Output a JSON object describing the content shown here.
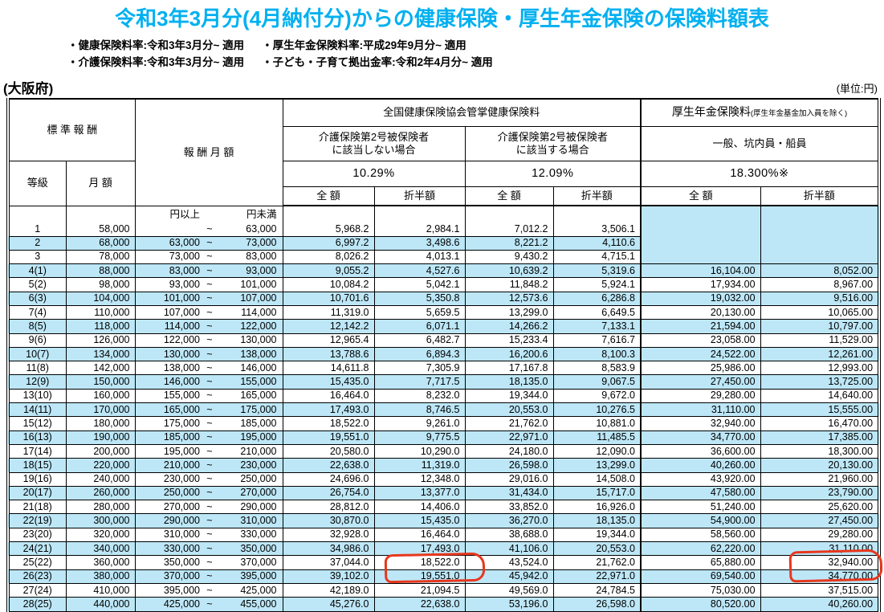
{
  "page": {
    "title": "令和3年3月分(4月納付分)からの健康保険・厚生年金保険の保険料額表",
    "notes_left": [
      "・健康保険料率:令和3年3月分~ 適用",
      "・介護保険料率:令和3年3月分~ 適用"
    ],
    "notes_right": [
      "・厚生年金保険料率:平成29年9月分~ 適用",
      "・子ども・子育て拠出金率:令和2年4月分~ 適用"
    ],
    "prefecture": "(大阪府)",
    "unit": "(単位:円)",
    "colors": {
      "title_accent": "#00b0f0",
      "row_highlight": "#bde7f7",
      "annotation_red": "#e8371d"
    }
  },
  "table": {
    "headers": {
      "standard_reward": "標 準 報 酬",
      "grade": "等級",
      "monthly_amount": "月 額",
      "monthly_reward": "報 酬 月 額",
      "health_group": "全国健康保険協会管掌健康保険料",
      "nocare_case": "介護保険第2号被保険者\nに該当しない場合",
      "care_case": "介護保険第2号被保険者\nに該当する場合",
      "nocare_rate": "10.29%",
      "care_rate": "12.09%",
      "pension_group": "厚生年金保険料",
      "pension_group_note": "(厚生年金基金加入員を除く)",
      "pension_type": "一般、坑内員・船員",
      "pension_rate": "18.300%※",
      "full_amount": "全 額",
      "half_amount": "折半額",
      "yen_or_more": "円以上",
      "yen_less_than": "円未満",
      "tilde": "~"
    },
    "rows": [
      [
        "1",
        "58,000",
        "",
        "63,000",
        "5,968.2",
        "2,984.1",
        "7,012.2",
        "3,506.1",
        "",
        ""
      ],
      [
        "2",
        "68,000",
        "63,000",
        "73,000",
        "6,997.2",
        "3,498.6",
        "8,221.2",
        "4,110.6",
        "",
        ""
      ],
      [
        "3",
        "78,000",
        "73,000",
        "83,000",
        "8,026.2",
        "4,013.1",
        "9,430.2",
        "4,715.1",
        "",
        ""
      ],
      [
        "4(1)",
        "88,000",
        "83,000",
        "93,000",
        "9,055.2",
        "4,527.6",
        "10,639.2",
        "5,319.6",
        "16,104.00",
        "8,052.00"
      ],
      [
        "5(2)",
        "98,000",
        "93,000",
        "101,000",
        "10,084.2",
        "5,042.1",
        "11,848.2",
        "5,924.1",
        "17,934.00",
        "8,967.00"
      ],
      [
        "6(3)",
        "104,000",
        "101,000",
        "107,000",
        "10,701.6",
        "5,350.8",
        "12,573.6",
        "6,286.8",
        "19,032.00",
        "9,516.00"
      ],
      [
        "7(4)",
        "110,000",
        "107,000",
        "114,000",
        "11,319.0",
        "5,659.5",
        "13,299.0",
        "6,649.5",
        "20,130.00",
        "10,065.00"
      ],
      [
        "8(5)",
        "118,000",
        "114,000",
        "122,000",
        "12,142.2",
        "6,071.1",
        "14,266.2",
        "7,133.1",
        "21,594.00",
        "10,797.00"
      ],
      [
        "9(6)",
        "126,000",
        "122,000",
        "130,000",
        "12,965.4",
        "6,482.7",
        "15,233.4",
        "7,616.7",
        "23,058.00",
        "11,529.00"
      ],
      [
        "10(7)",
        "134,000",
        "130,000",
        "138,000",
        "13,788.6",
        "6,894.3",
        "16,200.6",
        "8,100.3",
        "24,522.00",
        "12,261.00"
      ],
      [
        "11(8)",
        "142,000",
        "138,000",
        "146,000",
        "14,611.8",
        "7,305.9",
        "17,167.8",
        "8,583.9",
        "25,986.00",
        "12,993.00"
      ],
      [
        "12(9)",
        "150,000",
        "146,000",
        "155,000",
        "15,435.0",
        "7,717.5",
        "18,135.0",
        "9,067.5",
        "27,450.00",
        "13,725.00"
      ],
      [
        "13(10)",
        "160,000",
        "155,000",
        "165,000",
        "16,464.0",
        "8,232.0",
        "19,344.0",
        "9,672.0",
        "29,280.00",
        "14,640.00"
      ],
      [
        "14(11)",
        "170,000",
        "165,000",
        "175,000",
        "17,493.0",
        "8,746.5",
        "20,553.0",
        "10,276.5",
        "31,110.00",
        "15,555.00"
      ],
      [
        "15(12)",
        "180,000",
        "175,000",
        "185,000",
        "18,522.0",
        "9,261.0",
        "21,762.0",
        "10,881.0",
        "32,940.00",
        "16,470.00"
      ],
      [
        "16(13)",
        "190,000",
        "185,000",
        "195,000",
        "19,551.0",
        "9,775.5",
        "22,971.0",
        "11,485.5",
        "34,770.00",
        "17,385.00"
      ],
      [
        "17(14)",
        "200,000",
        "195,000",
        "210,000",
        "20,580.0",
        "10,290.0",
        "24,180.0",
        "12,090.0",
        "36,600.00",
        "18,300.00"
      ],
      [
        "18(15)",
        "220,000",
        "210,000",
        "230,000",
        "22,638.0",
        "11,319.0",
        "26,598.0",
        "13,299.0",
        "40,260.00",
        "20,130.00"
      ],
      [
        "19(16)",
        "240,000",
        "230,000",
        "250,000",
        "24,696.0",
        "12,348.0",
        "29,016.0",
        "14,508.0",
        "43,920.00",
        "21,960.00"
      ],
      [
        "20(17)",
        "260,000",
        "250,000",
        "270,000",
        "26,754.0",
        "13,377.0",
        "31,434.0",
        "15,717.0",
        "47,580.00",
        "23,790.00"
      ],
      [
        "21(18)",
        "280,000",
        "270,000",
        "290,000",
        "28,812.0",
        "14,406.0",
        "33,852.0",
        "16,926.0",
        "51,240.00",
        "25,620.00"
      ],
      [
        "22(19)",
        "300,000",
        "290,000",
        "310,000",
        "30,870.0",
        "15,435.0",
        "36,270.0",
        "18,135.0",
        "54,900.00",
        "27,450.00"
      ],
      [
        "23(20)",
        "320,000",
        "310,000",
        "330,000",
        "32,928.0",
        "16,464.0",
        "38,688.0",
        "19,344.0",
        "58,560.00",
        "29,280.00"
      ],
      [
        "24(21)",
        "340,000",
        "330,000",
        "350,000",
        "34,986.0",
        "17,493.0",
        "41,106.0",
        "20,553.0",
        "62,220.00",
        "31,110.00"
      ],
      [
        "25(22)",
        "360,000",
        "350,000",
        "370,000",
        "37,044.0",
        "18,522.0",
        "43,524.0",
        "21,762.0",
        "65,880.00",
        "32,940.00"
      ],
      [
        "26(23)",
        "380,000",
        "370,000",
        "395,000",
        "39,102.0",
        "19,551.0",
        "45,942.0",
        "22,971.0",
        "69,540.00",
        "34,770.00"
      ],
      [
        "27(24)",
        "410,000",
        "395,000",
        "425,000",
        "42,189.0",
        "21,094.5",
        "49,569.0",
        "24,784.5",
        "75,030.00",
        "37,515.00"
      ],
      [
        "28(25)",
        "440,000",
        "425,000",
        "455,000",
        "45,276.0",
        "22,638.0",
        "53,196.0",
        "26,598.0",
        "80,520.00",
        "40,260.00"
      ]
    ]
  },
  "annotations": {
    "color": "#e8371d",
    "circles": [
      {
        "circled_value": "18,522.0",
        "row_grade": "25(22)",
        "column": "健康保険(介護非該当) 折半額"
      },
      {
        "circled_value": "32,940.00",
        "row_grade": "25(22)",
        "column": "厚生年金 折半額"
      }
    ]
  }
}
